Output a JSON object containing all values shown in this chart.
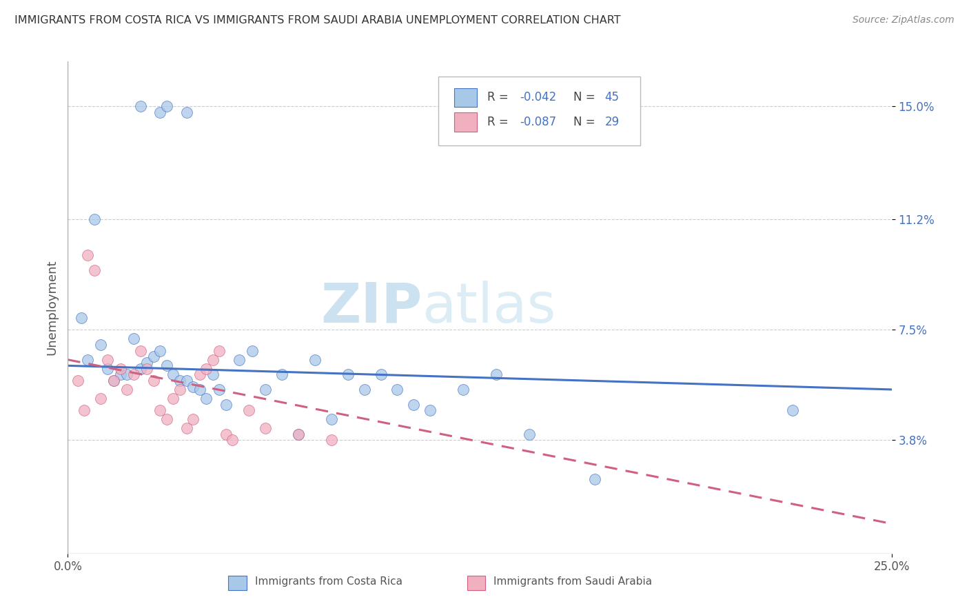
{
  "title": "IMMIGRANTS FROM COSTA RICA VS IMMIGRANTS FROM SAUDI ARABIA UNEMPLOYMENT CORRELATION CHART",
  "source": "Source: ZipAtlas.com",
  "ylabel": "Unemployment",
  "ytick_labels": [
    "15.0%",
    "11.2%",
    "7.5%",
    "3.8%"
  ],
  "ytick_values": [
    0.15,
    0.112,
    0.075,
    0.038
  ],
  "xmin": 0.0,
  "xmax": 0.25,
  "ymin": 0.0,
  "ymax": 0.165,
  "legend_cr_R": "-0.042",
  "legend_cr_N": "45",
  "legend_sa_R": "-0.087",
  "legend_sa_N": "29",
  "color_cr": "#a8c8e8",
  "color_sa": "#f0b0c0",
  "color_line_cr": "#4472C4",
  "color_line_sa": "#d06080",
  "watermark_zip": "ZIP",
  "watermark_atlas": "atlas",
  "costa_rica_x": [
    0.022,
    0.028,
    0.03,
    0.036,
    0.004,
    0.006,
    0.008,
    0.01,
    0.012,
    0.014,
    0.016,
    0.018,
    0.02,
    0.022,
    0.024,
    0.026,
    0.028,
    0.03,
    0.032,
    0.034,
    0.036,
    0.038,
    0.04,
    0.042,
    0.044,
    0.046,
    0.048,
    0.052,
    0.056,
    0.06,
    0.065,
    0.07,
    0.075,
    0.08,
    0.085,
    0.09,
    0.095,
    0.1,
    0.105,
    0.11,
    0.12,
    0.13,
    0.14,
    0.16,
    0.22
  ],
  "costa_rica_y": [
    0.15,
    0.148,
    0.15,
    0.148,
    0.079,
    0.065,
    0.112,
    0.07,
    0.062,
    0.058,
    0.06,
    0.06,
    0.072,
    0.062,
    0.064,
    0.066,
    0.068,
    0.063,
    0.06,
    0.058,
    0.058,
    0.056,
    0.055,
    0.052,
    0.06,
    0.055,
    0.05,
    0.065,
    0.068,
    0.055,
    0.06,
    0.04,
    0.065,
    0.045,
    0.06,
    0.055,
    0.06,
    0.055,
    0.05,
    0.048,
    0.055,
    0.06,
    0.04,
    0.025,
    0.048
  ],
  "saudi_arabia_x": [
    0.003,
    0.005,
    0.006,
    0.008,
    0.01,
    0.012,
    0.014,
    0.016,
    0.018,
    0.02,
    0.022,
    0.024,
    0.026,
    0.028,
    0.03,
    0.032,
    0.034,
    0.036,
    0.038,
    0.04,
    0.042,
    0.044,
    0.046,
    0.048,
    0.05,
    0.055,
    0.06,
    0.07,
    0.08
  ],
  "saudi_arabia_y": [
    0.058,
    0.048,
    0.1,
    0.095,
    0.052,
    0.065,
    0.058,
    0.062,
    0.055,
    0.06,
    0.068,
    0.062,
    0.058,
    0.048,
    0.045,
    0.052,
    0.055,
    0.042,
    0.045,
    0.06,
    0.062,
    0.065,
    0.068,
    0.04,
    0.038,
    0.048,
    0.042,
    0.04,
    0.038
  ],
  "cr_trend_x0": 0.0,
  "cr_trend_x1": 0.25,
  "cr_trend_y0": 0.063,
  "cr_trend_y1": 0.055,
  "sa_trend_x0": 0.0,
  "sa_trend_x1": 0.25,
  "sa_trend_y0": 0.065,
  "sa_trend_y1": 0.01
}
